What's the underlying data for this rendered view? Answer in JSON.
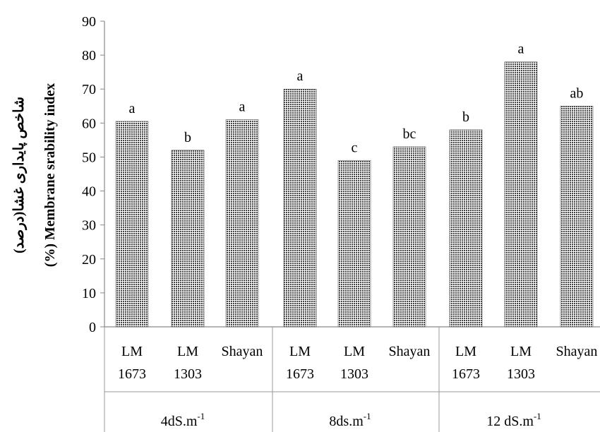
{
  "chart_data": {
    "type": "bar",
    "ylabel_persian": "شاخص پایداری غشا(درصد)",
    "ylabel": "(%) Membrane srability index",
    "ylim": [
      0,
      90
    ],
    "yticks": [
      "0",
      "10",
      "20",
      "30",
      "40",
      "50",
      "60",
      "70",
      "80",
      "90"
    ],
    "grid": false,
    "pattern_color": "#444444",
    "groups": [
      {
        "label": "4dS.m",
        "label_sup": "-1",
        "bars": [
          {
            "line1": "LM",
            "line2": "1673",
            "value": 60.5,
            "letter": "a"
          },
          {
            "line1": "LM",
            "line2": "1303",
            "value": 52,
            "letter": "b"
          },
          {
            "line1": "Shayan",
            "line2": "",
            "value": 61,
            "letter": "a"
          }
        ]
      },
      {
        "label": "8ds.m",
        "label_sup": "-1",
        "bars": [
          {
            "line1": "LM",
            "line2": "1673",
            "value": 70,
            "letter": "a"
          },
          {
            "line1": "LM",
            "line2": "1303",
            "value": 49,
            "letter": "c"
          },
          {
            "line1": "Shayan",
            "line2": "",
            "value": 53,
            "letter": "bc"
          }
        ]
      },
      {
        "label": "12 dS.m",
        "label_sup": "-1",
        "bars": [
          {
            "line1": "LM",
            "line2": "1673",
            "value": 58,
            "letter": "b"
          },
          {
            "line1": "LM",
            "line2": "1303",
            "value": 78,
            "letter": "a"
          },
          {
            "line1": "Shayan",
            "line2": "",
            "value": 65,
            "letter": "ab"
          }
        ]
      }
    ]
  }
}
